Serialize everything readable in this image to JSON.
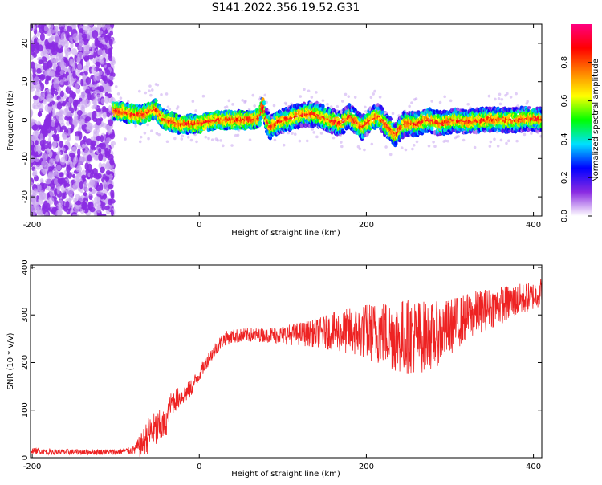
{
  "title": "S141.2022.356.19.52.G31",
  "chart_data": [
    {
      "type": "heatmap",
      "xlabel": "Height of straight line (km)",
      "ylabel": "Frequency (Hz)",
      "xlim": [
        -202,
        410
      ],
      "ylim": [
        -25,
        25
      ],
      "xticks": [
        -200,
        0,
        200,
        400
      ],
      "yticks": [
        -20,
        -10,
        0,
        10,
        20
      ],
      "colorbar": {
        "label": "Normalized spectral amplitude",
        "range": [
          0,
          1
        ],
        "ticks": [
          0.0,
          0.2,
          0.4,
          0.6,
          0.8
        ],
        "tick_labels": [
          "0.0",
          "0.2",
          "0.4",
          "0.6",
          "0.8"
        ],
        "colors": [
          "#ffffff",
          "#8a2be2",
          "#0000ff",
          "#00e0ff",
          "#00ff00",
          "#ffff00",
          "#ff8000",
          "#ff0000",
          "#ff0080"
        ]
      },
      "noise_region_x": [
        -202,
        -103
      ],
      "ridge": [
        {
          "x": -103,
          "f": 2.5
        },
        {
          "x": -90,
          "f": 2.0
        },
        {
          "x": -80,
          "f": 1.5
        },
        {
          "x": -70,
          "f": 1.2
        },
        {
          "x": -60,
          "f": 2.0
        },
        {
          "x": -52,
          "f": 3.0
        },
        {
          "x": -45,
          "f": 0.5
        },
        {
          "x": -40,
          "f": 0.0
        },
        {
          "x": -25,
          "f": -1.0
        },
        {
          "x": -10,
          "f": -1.0
        },
        {
          "x": 0,
          "f": -1.0
        },
        {
          "x": 10,
          "f": -0.5
        },
        {
          "x": 20,
          "f": 0.0
        },
        {
          "x": 40,
          "f": 0.0
        },
        {
          "x": 60,
          "f": 0.0
        },
        {
          "x": 72,
          "f": 0.5
        },
        {
          "x": 76,
          "f": 4.5
        },
        {
          "x": 80,
          "f": 0.0
        },
        {
          "x": 85,
          "f": -2.0
        },
        {
          "x": 95,
          "f": -0.5
        },
        {
          "x": 110,
          "f": 0.5
        },
        {
          "x": 125,
          "f": 1.5
        },
        {
          "x": 140,
          "f": 1.5
        },
        {
          "x": 155,
          "f": 0.0
        },
        {
          "x": 170,
          "f": -1.0
        },
        {
          "x": 180,
          "f": 1.0
        },
        {
          "x": 195,
          "f": -2.0
        },
        {
          "x": 205,
          "f": 0.0
        },
        {
          "x": 215,
          "f": 1.0
        },
        {
          "x": 225,
          "f": -1.5
        },
        {
          "x": 235,
          "f": -4.0
        },
        {
          "x": 245,
          "f": -1.0
        },
        {
          "x": 260,
          "f": -1.0
        },
        {
          "x": 275,
          "f": 0.0
        },
        {
          "x": 290,
          "f": -1.0
        },
        {
          "x": 305,
          "f": 0.0
        },
        {
          "x": 320,
          "f": -0.5
        },
        {
          "x": 340,
          "f": 0.0
        },
        {
          "x": 360,
          "f": 0.0
        },
        {
          "x": 380,
          "f": 0.0
        },
        {
          "x": 395,
          "f": 0.5
        },
        {
          "x": 410,
          "f": 0.0
        }
      ]
    },
    {
      "type": "line",
      "xlabel": "Height of straight line (km)",
      "ylabel": "SNR (10 * v/v)",
      "xlim": [
        -202,
        410
      ],
      "ylim": [
        0,
        405
      ],
      "xticks": [
        -200,
        0,
        200,
        400
      ],
      "yticks": [
        0,
        100,
        200,
        300,
        400
      ],
      "color": "#ee2222",
      "series": [
        {
          "x": [
            -202,
            -180,
            -150,
            -120,
            -100,
            -80,
            -70,
            -60,
            -50,
            -40,
            -35,
            -30,
            -20,
            -10,
            0,
            10,
            20,
            30,
            40,
            60,
            80,
            100,
            120,
            140,
            160,
            180,
            200,
            220,
            240,
            260,
            280,
            300,
            320,
            340,
            360,
            380,
            400,
            410
          ],
          "y": [
            15,
            12,
            12,
            12,
            12,
            15,
            25,
            50,
            60,
            70,
            110,
            120,
            130,
            145,
            175,
            205,
            230,
            250,
            255,
            258,
            258,
            258,
            260,
            262,
            265,
            265,
            265,
            262,
            255,
            255,
            255,
            275,
            295,
            310,
            320,
            330,
            340,
            350
          ],
          "spread": [
            6,
            6,
            6,
            6,
            6,
            8,
            25,
            40,
            40,
            30,
            25,
            25,
            20,
            20,
            15,
            15,
            15,
            15,
            15,
            15,
            15,
            20,
            25,
            30,
            40,
            50,
            60,
            70,
            80,
            80,
            70,
            60,
            50,
            45,
            40,
            35,
            30,
            30
          ]
        }
      ]
    }
  ]
}
